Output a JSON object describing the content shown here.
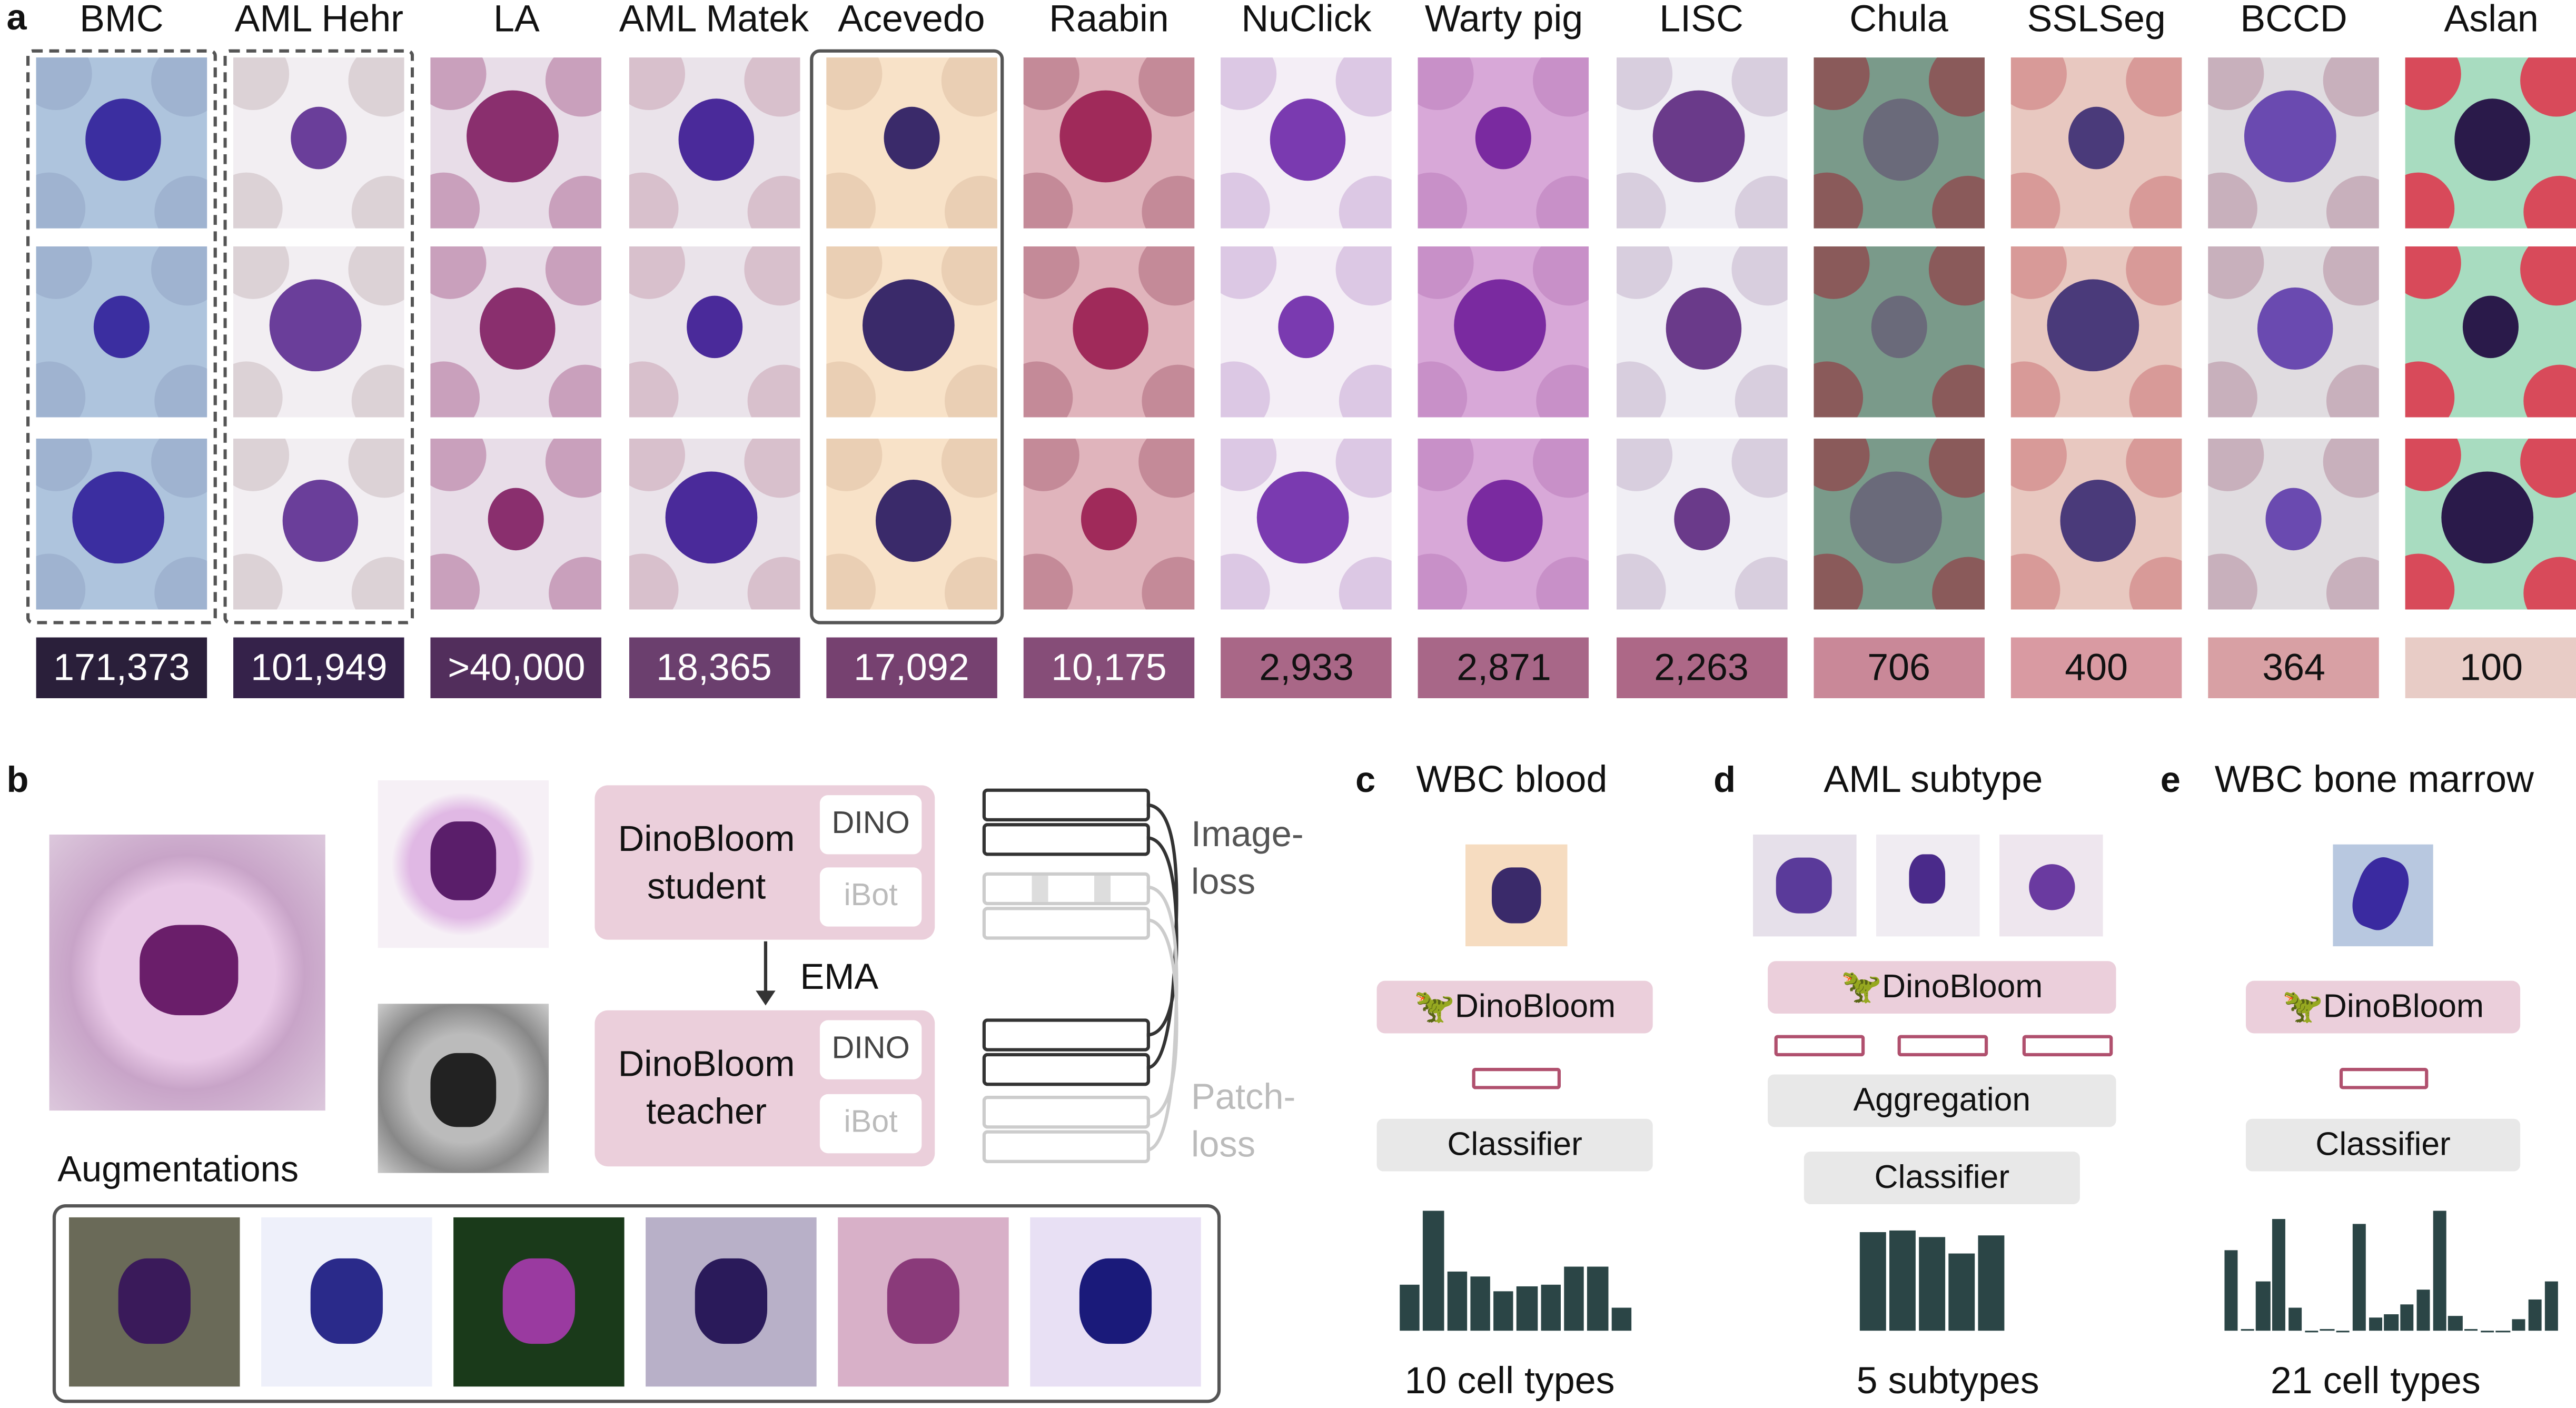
{
  "panel_a": {
    "letter": "a",
    "datasets": [
      {
        "name": "BMC",
        "count": "171,373",
        "box": "#2a1f3a",
        "text": "#fff",
        "bg": "#aec4dd",
        "rbc": "#9fb3d0",
        "nuc": "#3b2ea0"
      },
      {
        "name": "AML Hehr",
        "count": "101,949",
        "box": "#35224a",
        "text": "#fff",
        "bg": "#f2eef2",
        "rbc": "#dcd2d6",
        "nuc": "#6a3e9a"
      },
      {
        "name": "LA",
        "count": ">40,000",
        "box": "#522e5c",
        "text": "#fff",
        "bg": "#e8dde8",
        "rbc": "#c9a0bc",
        "nuc": "#8a2f6e"
      },
      {
        "name": "AML Matek",
        "count": "18,365",
        "box": "#6b3f6e",
        "text": "#fff",
        "bg": "#eae3ea",
        "rbc": "#d8c0cc",
        "nuc": "#4a2a9a"
      },
      {
        "name": "Acevedo",
        "count": "17,092",
        "box": "#764170",
        "text": "#fff",
        "bg": "#f8e2c8",
        "rbc": "#eacfb4",
        "nuc": "#3a2a6a"
      },
      {
        "name": "Raabin",
        "count": "10,175",
        "box": "#864d78",
        "text": "#fff",
        "bg": "#e0b4bc",
        "rbc": "#c48a98",
        "nuc": "#a02a5a"
      },
      {
        "name": "NuClick",
        "count": "2,933",
        "box": "#a96787",
        "text": "#111",
        "bg": "#f4eef6",
        "rbc": "#dcc8e4",
        "nuc": "#7a3ab0"
      },
      {
        "name": "Warty pig",
        "count": "2,871",
        "box": "#a86788",
        "text": "#111",
        "bg": "#d8a8d8",
        "rbc": "#c890c8",
        "nuc": "#7a2aa0"
      },
      {
        "name": "LISC",
        "count": "2,263",
        "box": "#ad6887",
        "text": "#111",
        "bg": "#f0eef4",
        "rbc": "#d8cede",
        "nuc": "#6a3a8a"
      },
      {
        "name": "Chula",
        "count": "706",
        "box": "#c98898",
        "text": "#111",
        "bg": "#7a9a8a",
        "rbc": "#8a5a5a",
        "nuc": "#6a6a7a"
      },
      {
        "name": "SSLSeg",
        "count": "400",
        "box": "#d99aa2",
        "text": "#111",
        "bg": "#e8c8c0",
        "rbc": "#d89a98",
        "nuc": "#4a3a7a"
      },
      {
        "name": "BCCD",
        "count": "364",
        "box": "#d8a0a4",
        "text": "#111",
        "bg": "#e0dce0",
        "rbc": "#c8b0bc",
        "nuc": "#6a4ab0"
      },
      {
        "name": "Aslan",
        "count": "100",
        "box": "#e8ccc6",
        "text": "#111",
        "bg": "#a8dcc0",
        "rbc": "#d84a5a",
        "nuc": "#2a1a4a"
      }
    ]
  },
  "panel_b": {
    "letter": "b",
    "student": "DinoBloom\nstudent",
    "teacher": "DinoBloom\nteacher",
    "dino": "DINO",
    "ibot": "iBot",
    "ema": "EMA",
    "image_loss": "Image-\nloss",
    "patch_loss": "Patch-\nloss",
    "augmentations": "Augmentations"
  },
  "panel_c": {
    "letter": "c",
    "title": "WBC blood",
    "model": "DinoBloom",
    "head": "Classifier",
    "caption": "10 cell types",
    "chart_data": {
      "type": "bar",
      "values": [
        265,
        692,
        340,
        310,
        230,
        257,
        265,
        368,
        373,
        136
      ]
    }
  },
  "panel_d": {
    "letter": "d",
    "title": "AML subtype",
    "model": "DinoBloom",
    "aggregation": "Aggregation",
    "head": "Classifier",
    "caption": "5 subtypes",
    "chart_data": {
      "type": "bar",
      "values": [
        569,
        575,
        535,
        443,
        548
      ]
    }
  },
  "panel_e": {
    "letter": "e",
    "title": "WBC bone marrow",
    "model": "DinoBloom",
    "head": "Classifier",
    "caption": "21 cell types",
    "chart_data": {
      "type": "bar",
      "values": [
        463,
        10,
        281,
        646,
        137,
        2,
        10,
        2,
        617,
        73,
        96,
        155,
        236,
        692,
        83,
        7,
        2,
        2,
        65,
        180,
        281
      ]
    }
  }
}
